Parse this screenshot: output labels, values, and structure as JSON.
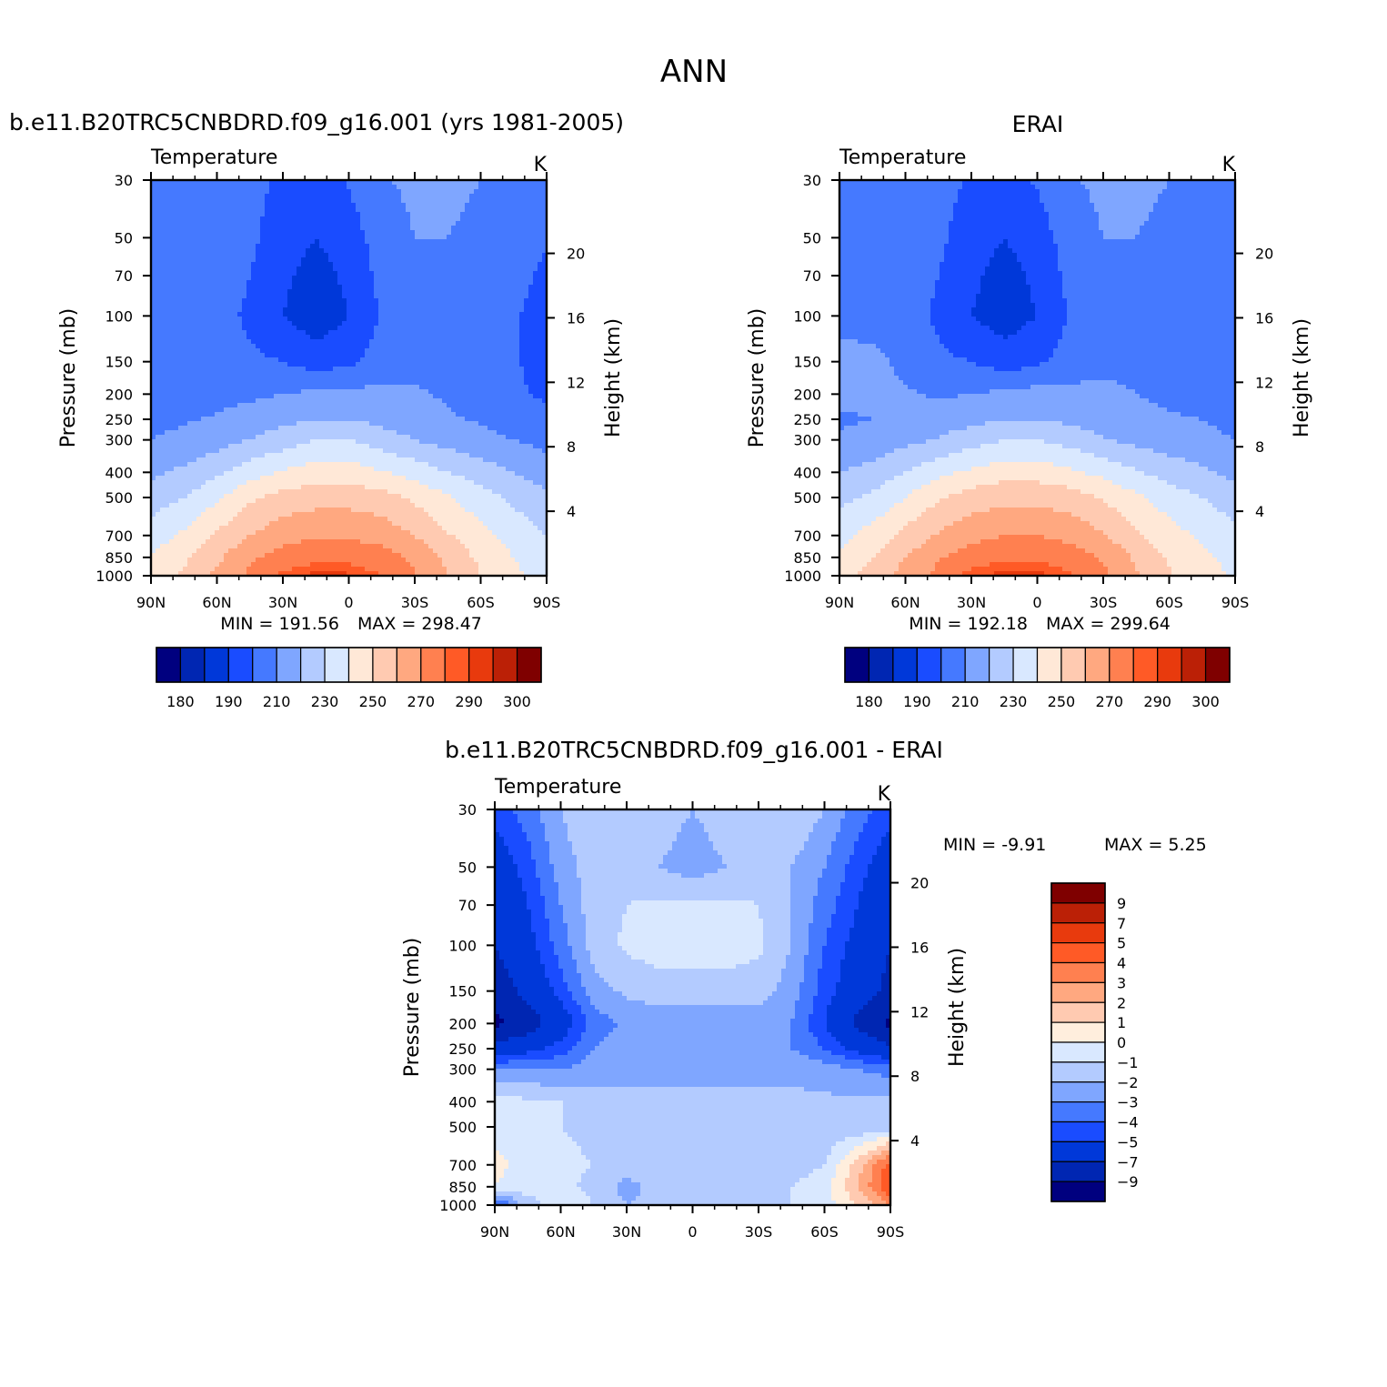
{
  "figure": {
    "title": "ANN"
  },
  "colors": {
    "abs_palette": [
      "#00007f",
      "#0026b2",
      "#0038d9",
      "#1a4cff",
      "#4579ff",
      "#7fa6ff",
      "#b3cbff",
      "#d9e8ff",
      "#ffe8d7",
      "#ffcab1",
      "#ffa880",
      "#ff8050",
      "#ff5a26",
      "#e83a0d",
      "#bb2006",
      "#7f0000"
    ],
    "diff_palette": [
      "#00007f",
      "#0026b2",
      "#0038d9",
      "#1a4cff",
      "#4579ff",
      "#7fa6ff",
      "#b3cbff",
      "#d9e8ff",
      "#ffeedd",
      "#ffcab1",
      "#ffa880",
      "#ff8050",
      "#ff5a26",
      "#e83a0d",
      "#bb2006",
      "#7f0000"
    ]
  },
  "chart_data": [
    {
      "type": "heatmap",
      "title": "b.e11.B20TRC5CNBDRD.f09_g16.001 (yrs 1981-2005)",
      "variable": "Temperature",
      "units": "K",
      "xlabel": "",
      "ylabel": "Pressure (mb)",
      "y2label": "Height (km)",
      "x_ticks": [
        "90N",
        "60N",
        "30N",
        "0",
        "30S",
        "60S",
        "90S"
      ],
      "y_ticks": [
        "30",
        "50",
        "70",
        "100",
        "150",
        "200",
        "250",
        "300",
        "400",
        "500",
        "700",
        "850",
        "1000"
      ],
      "y2_ticks": [
        "20",
        "16",
        "12",
        "8",
        "4"
      ],
      "min_label": "MIN  =  191.56",
      "max_label": "MAX  =  298.47",
      "min": 191.56,
      "max": 298.47,
      "colorbar_labels": [
        "180",
        "190",
        "210",
        "230",
        "250",
        "270",
        "290",
        "300"
      ],
      "levels": [
        180,
        190,
        200,
        210,
        220,
        230,
        240,
        250,
        260,
        270,
        280,
        290,
        295,
        300,
        305
      ],
      "field": {
        "lat": [
          -90,
          -75,
          -60,
          -45,
          -30,
          -15,
          0,
          15,
          30,
          45,
          60,
          75,
          90
        ],
        "p": [
          30,
          50,
          70,
          100,
          150,
          200,
          250,
          300,
          400,
          500,
          700,
          850,
          1000
        ],
        "values": [
          [
            215,
            218,
            220,
            222,
            222,
            219,
            211,
            205,
            208,
            213,
            217,
            219,
            220
          ],
          [
            211,
            215,
            218,
            220,
            220,
            215,
            205,
            200,
            205,
            212,
            217,
            218,
            219
          ],
          [
            208,
            213,
            216,
            218,
            219,
            213,
            202,
            196,
            202,
            210,
            216,
            217,
            218
          ],
          [
            206,
            211,
            215,
            217,
            217,
            211,
            200,
            194,
            200,
            208,
            214,
            216,
            216
          ],
          [
            206,
            211,
            215,
            217,
            218,
            214,
            208,
            205,
            210,
            212,
            215,
            216,
            216
          ],
          [
            208,
            212,
            216,
            219,
            221,
            222,
            223,
            222,
            220,
            218,
            217,
            216,
            216
          ],
          [
            213,
            216,
            219,
            221,
            224,
            227,
            230,
            230,
            227,
            224,
            221,
            219,
            218
          ],
          [
            217,
            220,
            223,
            226,
            230,
            235,
            240,
            240,
            235,
            230,
            226,
            222,
            220
          ],
          [
            225,
            230,
            235,
            240,
            246,
            251,
            255,
            255,
            251,
            246,
            238,
            232,
            228
          ],
          [
            232,
            238,
            244,
            251,
            258,
            264,
            266,
            266,
            264,
            258,
            248,
            240,
            235
          ],
          [
            240,
            246,
            253,
            261,
            270,
            276,
            279,
            279,
            276,
            270,
            262,
            252,
            245
          ],
          [
            244,
            250,
            258,
            267,
            278,
            284,
            287,
            287,
            284,
            278,
            268,
            258,
            250
          ],
          [
            245,
            252,
            260,
            270,
            281,
            290,
            296,
            297,
            292,
            282,
            272,
            262,
            255
          ]
        ]
      }
    },
    {
      "type": "heatmap",
      "title": "ERAI",
      "variable": "Temperature",
      "units": "K",
      "xlabel": "",
      "ylabel": "Pressure (mb)",
      "y2label": "Height (km)",
      "x_ticks": [
        "90N",
        "60N",
        "30N",
        "0",
        "30S",
        "60S",
        "90S"
      ],
      "y_ticks": [
        "30",
        "50",
        "70",
        "100",
        "150",
        "200",
        "250",
        "300",
        "400",
        "500",
        "700",
        "850",
        "1000"
      ],
      "y2_ticks": [
        "20",
        "16",
        "12",
        "8",
        "4"
      ],
      "min_label": "MIN  =  192.18",
      "max_label": "MAX  =  299.64",
      "min": 192.18,
      "max": 299.64,
      "colorbar_labels": [
        "180",
        "190",
        "210",
        "230",
        "250",
        "270",
        "290",
        "300"
      ],
      "levels": [
        180,
        190,
        200,
        210,
        220,
        230,
        240,
        250,
        260,
        270,
        280,
        290,
        295,
        300,
        305
      ],
      "field": {
        "lat": [
          -90,
          -75,
          -60,
          -45,
          -30,
          -15,
          0,
          15,
          30,
          45,
          60,
          75,
          90
        ],
        "p": [
          30,
          50,
          70,
          100,
          150,
          200,
          250,
          300,
          400,
          500,
          700,
          850,
          1000
        ],
        "values": [
          [
            216,
            218,
            220,
            222,
            222,
            219,
            211,
            206,
            209,
            213,
            217,
            219,
            220
          ],
          [
            213,
            216,
            218,
            220,
            220,
            215,
            205,
            200,
            205,
            212,
            217,
            219,
            220
          ],
          [
            211,
            214,
            216,
            218,
            219,
            213,
            202,
            196,
            202,
            210,
            217,
            218,
            219
          ],
          [
            210,
            213,
            215,
            217,
            217,
            211,
            200,
            195,
            200,
            208,
            215,
            217,
            218
          ],
          [
            212,
            214,
            216,
            218,
            218,
            214,
            208,
            205,
            210,
            212,
            218,
            222,
            222
          ],
          [
            215,
            217,
            218,
            220,
            222,
            223,
            224,
            222,
            220,
            219,
            221,
            222,
            222
          ],
          [
            218,
            220,
            221,
            223,
            225,
            228,
            230,
            230,
            227,
            224,
            222,
            220,
            219
          ],
          [
            220,
            222,
            224,
            227,
            231,
            236,
            240,
            240,
            236,
            231,
            227,
            223,
            221
          ],
          [
            227,
            232,
            236,
            241,
            247,
            252,
            256,
            256,
            252,
            247,
            240,
            234,
            230
          ],
          [
            235,
            240,
            245,
            252,
            259,
            265,
            267,
            267,
            265,
            259,
            250,
            242,
            237
          ],
          [
            243,
            248,
            254,
            262,
            271,
            277,
            280,
            280,
            277,
            271,
            263,
            254,
            247
          ],
          [
            247,
            252,
            259,
            268,
            279,
            285,
            288,
            288,
            285,
            279,
            270,
            260,
            252
          ],
          [
            249,
            254,
            261,
            271,
            282,
            291,
            297,
            298,
            293,
            283,
            274,
            264,
            256
          ]
        ]
      }
    },
    {
      "type": "heatmap",
      "title": "b.e11.B20TRC5CNBDRD.f09_g16.001 - ERAI",
      "variable": "Temperature",
      "units": "K",
      "xlabel": "",
      "ylabel": "Pressure (mb)",
      "y2label": "Height (km)",
      "x_ticks": [
        "90N",
        "60N",
        "30N",
        "0",
        "30S",
        "60S",
        "90S"
      ],
      "y_ticks": [
        "30",
        "50",
        "70",
        "100",
        "150",
        "200",
        "250",
        "300",
        "400",
        "500",
        "700",
        "850",
        "1000"
      ],
      "y2_ticks": [
        "20",
        "16",
        "12",
        "8",
        "4"
      ],
      "min_label": "MIN =    -9.91",
      "max_label": "MAX =     5.25",
      "min": -9.91,
      "max": 5.25,
      "colorbar_labels": [
        "9",
        "7",
        "5",
        "4",
        "3",
        "2",
        "1",
        "0",
        "−1",
        "−2",
        "−3",
        "−4",
        "−5",
        "−7",
        "−9"
      ],
      "levels": [
        -9,
        -7,
        -5,
        -4,
        -3,
        -2,
        -1,
        0,
        1,
        2,
        3,
        4,
        5,
        7,
        9
      ],
      "field": {
        "lat": [
          -90,
          -75,
          -60,
          -45,
          -30,
          -15,
          0,
          15,
          30,
          45,
          60,
          75,
          90
        ],
        "p": [
          30,
          50,
          70,
          100,
          150,
          200,
          250,
          300,
          400,
          500,
          700,
          850,
          1000
        ],
        "values": [
          [
            -4.5,
            -3.5,
            -2.0,
            -1.0,
            -1.0,
            -1.5,
            -2.0,
            -1.5,
            -1.0,
            -1.0,
            -2.0,
            -3.5,
            -4.5
          ],
          [
            -6.0,
            -4.5,
            -3.0,
            -2.0,
            -1.5,
            -2.0,
            -2.5,
            -2.0,
            -1.5,
            -1.5,
            -2.5,
            -4.5,
            -6.0
          ],
          [
            -6.5,
            -5.0,
            -3.5,
            -2.0,
            -1.0,
            -0.8,
            -0.8,
            -0.8,
            -1.0,
            -1.5,
            -3.0,
            -5.0,
            -6.5
          ],
          [
            -7.0,
            -5.5,
            -4.0,
            -2.0,
            -0.8,
            -0.5,
            -0.5,
            -0.5,
            -0.8,
            -1.5,
            -3.5,
            -5.5,
            -7.0
          ],
          [
            -7.5,
            -6.0,
            -4.5,
            -2.5,
            -1.5,
            -1.5,
            -1.5,
            -1.5,
            -1.8,
            -2.5,
            -4.5,
            -6.5,
            -8.0
          ],
          [
            -9.5,
            -7.5,
            -5.0,
            -3.0,
            -2.5,
            -2.5,
            -2.5,
            -2.5,
            -2.8,
            -3.5,
            -6.0,
            -8.0,
            -9.5
          ],
          [
            -6.5,
            -5.5,
            -4.0,
            -3.0,
            -2.5,
            -2.5,
            -2.5,
            -2.5,
            -2.5,
            -3.0,
            -4.5,
            -5.5,
            -6.0
          ],
          [
            -3.5,
            -3.0,
            -2.5,
            -2.2,
            -2.2,
            -2.2,
            -2.2,
            -2.2,
            -2.2,
            -2.5,
            -3.0,
            -3.0,
            -3.0
          ],
          [
            -1.5,
            -1.8,
            -1.8,
            -1.8,
            -1.8,
            -1.8,
            -1.8,
            -1.8,
            -1.8,
            -1.5,
            -1.0,
            -0.8,
            -0.5
          ],
          [
            -1.5,
            -1.8,
            -1.8,
            -1.8,
            -1.8,
            -1.8,
            -1.8,
            -1.8,
            -1.5,
            -1.2,
            -1.0,
            -0.8,
            -0.3
          ],
          [
            4.5,
            1.5,
            -1.0,
            -1.5,
            -1.5,
            -1.5,
            -1.5,
            -1.2,
            -1.2,
            -1.0,
            -0.8,
            -0.2,
            0.2
          ],
          [
            5.0,
            2.0,
            -0.5,
            -1.0,
            -1.5,
            -1.8,
            -1.2,
            -1.5,
            -2.5,
            -1.2,
            -0.8,
            -0.5,
            0.0
          ],
          [
            3.0,
            1.0,
            -0.5,
            -1.0,
            -1.5,
            -1.5,
            -1.0,
            -1.5,
            -2.0,
            -1.0,
            -0.5,
            -1.5,
            -4.5
          ]
        ]
      }
    }
  ]
}
